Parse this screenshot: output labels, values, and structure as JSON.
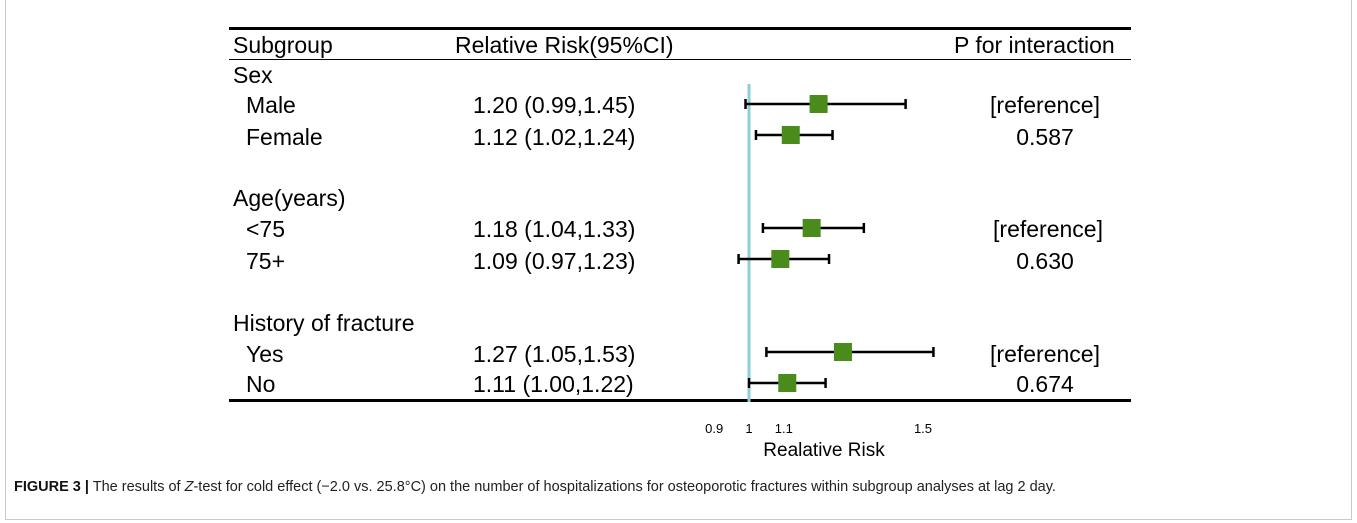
{
  "header": {
    "subgroup": "Subgroup",
    "rr": "Relative Risk(95%CI)",
    "p": "P for interaction"
  },
  "groups": [
    {
      "name": "Sex",
      "rows": [
        {
          "label": "Male",
          "rr_text": "1.20 (0.99,1.45)",
          "p_text": "[reference]"
        },
        {
          "label": "Female",
          "rr_text": "1.12 (1.02,1.24)",
          "p_text": "0.587"
        }
      ]
    },
    {
      "name": "Age(years)",
      "rows": [
        {
          "label": "<75",
          "rr_text": "1.18 (1.04,1.33)",
          "p_text": "[reference]"
        },
        {
          "label": "75+",
          "rr_text": "1.09 (0.97,1.23)",
          "p_text": "0.630"
        }
      ]
    },
    {
      "name": "History of fracture",
      "rows": [
        {
          "label": "Yes",
          "rr_text": "1.27 (1.05,1.53)",
          "p_text": "[reference]"
        },
        {
          "label": "No",
          "rr_text": "1.11 (1.00,1.22)",
          "p_text": "0.674"
        }
      ]
    }
  ],
  "caption": {
    "figure_label": "FIGURE 3 |",
    "text_before": " The results of ",
    "italic": "Z",
    "text_after": "-test for cold effect (−2.0 vs. 25.8°C) on the number of hospitalizations for osteoporotic fractures within subgroup analyses at lag 2 day."
  },
  "chart_data": {
    "type": "forest",
    "xlabel": "Realative Risk",
    "xticks": [
      0.9,
      1,
      1.1,
      1.5
    ],
    "xtick_labels": [
      "0.9",
      "1",
      "1.1",
      "1.5"
    ],
    "reference_line": 1,
    "colors": {
      "marker": "#4a8c1c",
      "reference_line": "#8ccfd4",
      "whisker": "#000000"
    },
    "points": [
      {
        "label": "Male",
        "estimate": 1.2,
        "lower": 0.99,
        "upper": 1.45
      },
      {
        "label": "Female",
        "estimate": 1.12,
        "lower": 1.02,
        "upper": 1.24
      },
      {
        "label": "<75",
        "estimate": 1.18,
        "lower": 1.04,
        "upper": 1.33
      },
      {
        "label": "75+",
        "estimate": 1.09,
        "lower": 0.97,
        "upper": 1.23
      },
      {
        "label": "Yes",
        "estimate": 1.27,
        "lower": 1.05,
        "upper": 1.53
      },
      {
        "label": "No",
        "estimate": 1.11,
        "lower": 1.0,
        "upper": 1.22
      }
    ]
  }
}
